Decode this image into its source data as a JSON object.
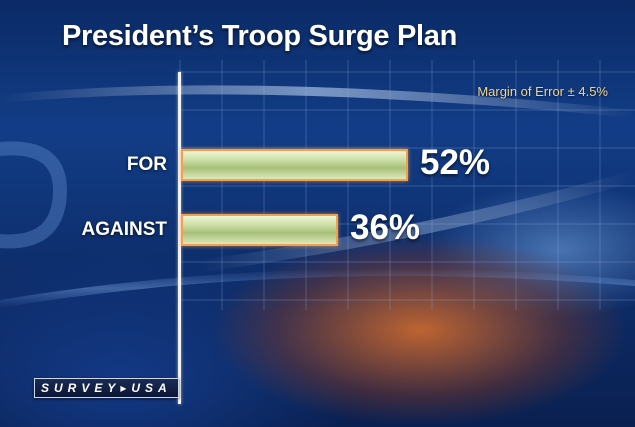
{
  "title": "President’s Troop Surge Plan",
  "margin_of_error": "Margin of Error ± 4.5%",
  "logo": "SURVEY▸USA",
  "colors": {
    "bar_fill": "#c9dca0",
    "bar_border": "#f0a050",
    "text": "#ffffff",
    "moe_text": "#f5d58a"
  },
  "chart_data": {
    "type": "bar",
    "orientation": "horizontal",
    "categories": [
      "FOR",
      "AGAINST"
    ],
    "values": [
      52,
      36
    ],
    "value_labels": [
      "52%",
      "36%"
    ],
    "title": "President’s Troop Surge Plan",
    "xlabel": "",
    "ylabel": "",
    "xlim": [
      0,
      100
    ],
    "grid": true,
    "legend": "none"
  }
}
